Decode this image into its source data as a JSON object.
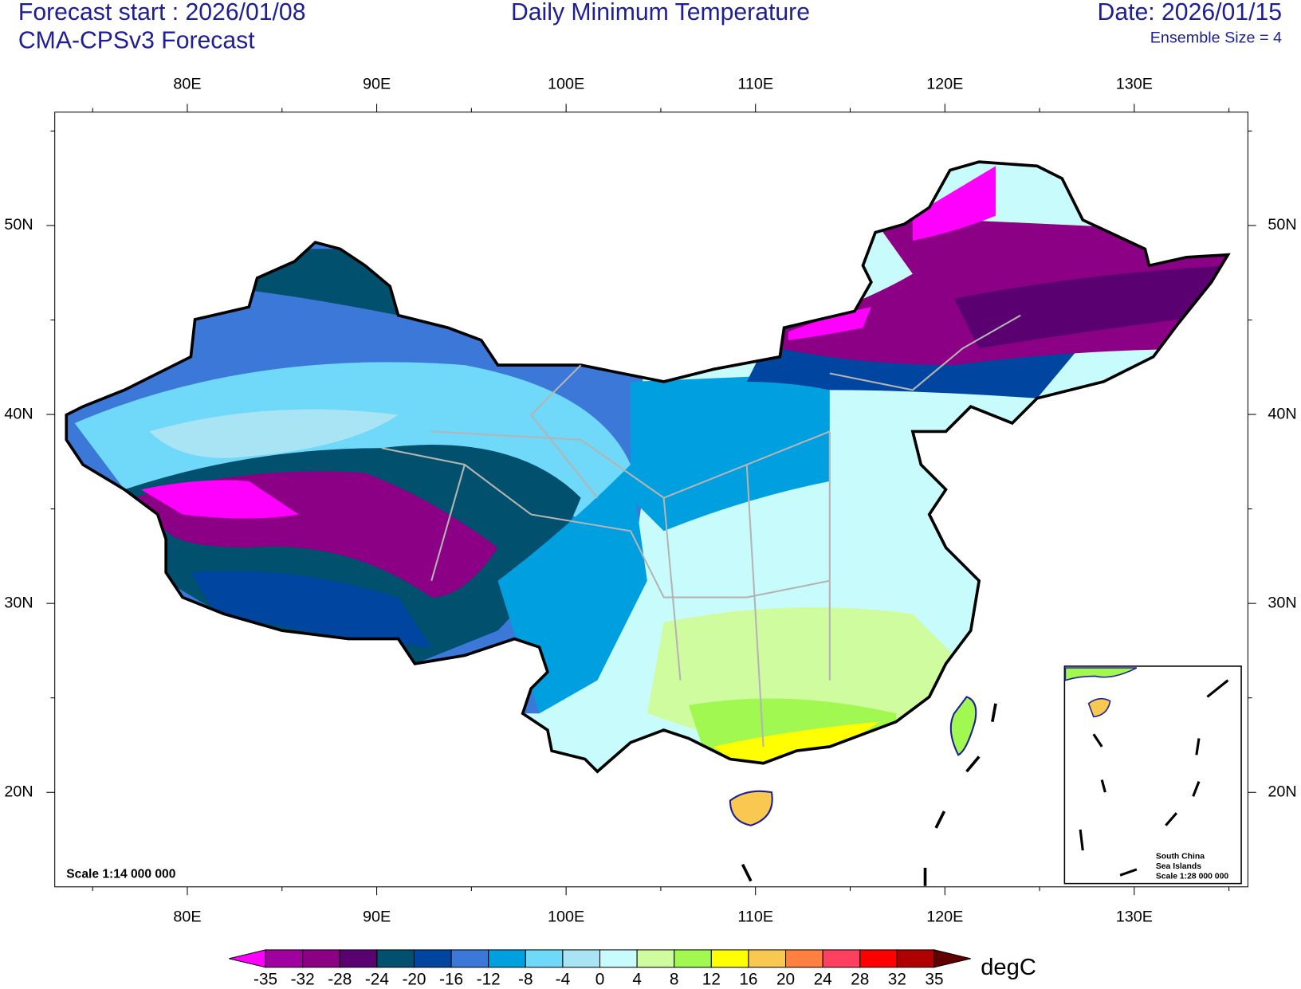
{
  "header": {
    "forecast_start": "Forecast start : 2026/01/08",
    "model": "CMA-CPSv3 Forecast",
    "title": "Daily Minimum Temperature",
    "date": "Date: 2026/01/15",
    "ensemble": "Ensemble Size = 4"
  },
  "map": {
    "xlim": [
      73,
      136
    ],
    "ylim": [
      15,
      56
    ],
    "xticks": [
      {
        "value": 80,
        "label": "80E"
      },
      {
        "value": 90,
        "label": "90E"
      },
      {
        "value": 100,
        "label": "100E"
      },
      {
        "value": 110,
        "label": "110E"
      },
      {
        "value": 120,
        "label": "120E"
      },
      {
        "value": 130,
        "label": "130E"
      }
    ],
    "xminorticks": [
      75,
      85,
      95,
      105,
      115,
      125,
      135
    ],
    "yticks": [
      {
        "value": 20,
        "label": "20N"
      },
      {
        "value": 30,
        "label": "30N"
      },
      {
        "value": 40,
        "label": "40N"
      },
      {
        "value": 50,
        "label": "50N"
      }
    ],
    "yminorticks": [
      25,
      35,
      45,
      55
    ],
    "scale": "Scale 1:14 000 000",
    "inset": {
      "line1": "South China",
      "line2": "Sea Islands",
      "scale": "Scale 1:28 000 000"
    }
  },
  "colorbar": {
    "unit": "degC",
    "levels": [
      -35,
      -32,
      -28,
      -24,
      -20,
      -16,
      -12,
      -8,
      -4,
      0,
      4,
      8,
      12,
      16,
      20,
      24,
      28,
      32,
      35
    ],
    "colors": [
      "#ff00ff",
      "#a000a0",
      "#8b0085",
      "#5a0070",
      "#00506e",
      "#0046a0",
      "#3c78d8",
      "#00a0e0",
      "#70d8f8",
      "#a8e4f4",
      "#c8fcfc",
      "#d0fca0",
      "#a0f850",
      "#ffff00",
      "#f8c850",
      "#ff8040",
      "#ff4060",
      "#ff0000",
      "#b00000",
      "#600000"
    ]
  }
}
